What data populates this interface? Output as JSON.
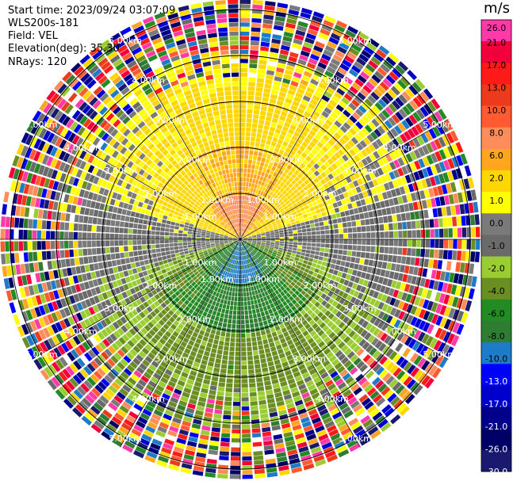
{
  "header": {
    "start_time": "Start time: 2023/09/24 03:07:09",
    "site": "WLS200s-181",
    "field": "Field: VEL",
    "elevation": "Elevation(deg): 35.30",
    "nrays": "NRays: 120"
  },
  "colorbar": {
    "unit": "m/s",
    "ticks": [
      "26.0",
      "21.0",
      "17.0",
      "13.0",
      "10.0",
      "8.0",
      "6.0",
      "2.0",
      "1.0",
      "0.0",
      "-1.0",
      "-2.0",
      "-4.0",
      "-6.0",
      "-8.0",
      "-10.0",
      "-13.0",
      "-17.0",
      "-21.0",
      "-26.0",
      "-30.0"
    ],
    "colors": [
      "#ff3aa8",
      "#f2003c",
      "#ff1a1a",
      "#ee3a1c",
      "#ff5a30",
      "#ff8c5a",
      "#ffa51e",
      "#ffd700",
      "#ffff00",
      "#7a7a7a",
      "#6a6a6a",
      "#9acd32",
      "#6b8e23",
      "#228b22",
      "#2e7d32",
      "#1e7bc8",
      "#0000ff",
      "#0000cd",
      "#00008b",
      "#000066",
      "#191970"
    ]
  },
  "chart_data": {
    "type": "heatmap",
    "chart_type": "polar ppi",
    "field": "VEL",
    "nrays": 120,
    "range_rings_km": [
      1.0,
      2.0,
      3.0,
      4.0,
      5.0
    ],
    "ring_labels": [
      "1.00km",
      "2.00km",
      "3.00km",
      "4.00km",
      "5.00km"
    ],
    "approximate_pattern": [
      {
        "region": "north, inner 0-1 km",
        "value_ms": 8.0
      },
      {
        "region": "north, 1-2 km",
        "value_ms": 6.0
      },
      {
        "region": "north, 2-3 km",
        "value_ms": 2.0
      },
      {
        "region": "south, inner 0-1 km",
        "value_ms": -8.0
      },
      {
        "region": "south, 1-2 km",
        "value_ms": -6.0
      },
      {
        "region": "south, 2-3 km",
        "value_ms": -2.0
      },
      {
        "region": "east/west, 0-3 km",
        "value_ms": 0.0
      },
      {
        "region": "beyond 4 km",
        "value_ms": "noise"
      }
    ]
  }
}
